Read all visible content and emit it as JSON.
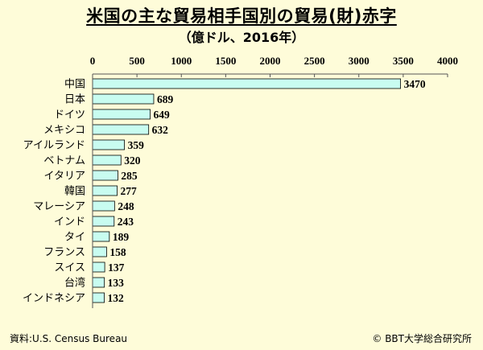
{
  "chart_data": {
    "type": "bar",
    "orientation": "horizontal",
    "title": "米国の主な貿易相手国別の貿易(財)赤字",
    "subtitle": "（億ドル、2016年）",
    "categories": [
      "中国",
      "日本",
      "ドイツ",
      "メキシコ",
      "アイルランド",
      "ベトナム",
      "イタリア",
      "韓国",
      "マレーシア",
      "インド",
      "タイ",
      "フランス",
      "スイス",
      "台湾",
      "インドネシア"
    ],
    "values": [
      3470,
      689,
      649,
      632,
      359,
      320,
      285,
      277,
      248,
      243,
      189,
      158,
      137,
      133,
      132
    ],
    "xlim": [
      0,
      4000
    ],
    "xticks": [
      0,
      500,
      1000,
      1500,
      2000,
      2500,
      3000,
      3500,
      4000
    ],
    "xaxis_position": "top",
    "grid": false,
    "colors": {
      "bar_fill": "#c8fcf0",
      "bar_stroke": "#000000",
      "background": "#fefcd9"
    }
  },
  "footer": {
    "source": "資料:U.S. Census Bureau",
    "credit": "© BBT大学総合研究所"
  }
}
